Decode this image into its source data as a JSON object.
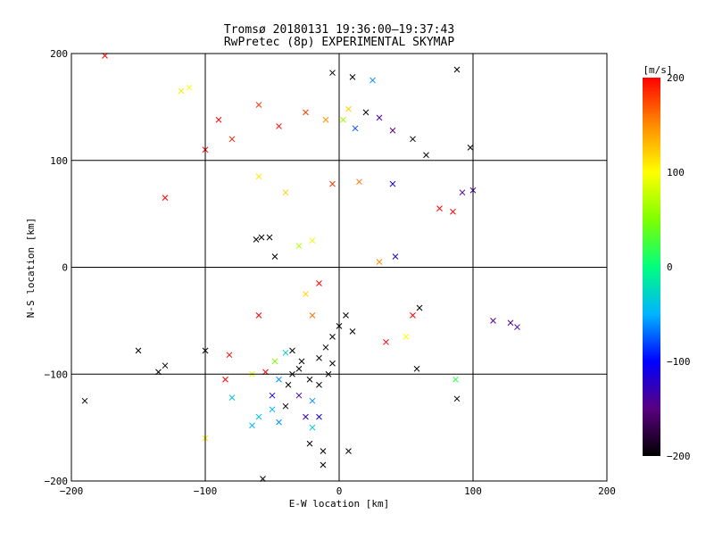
{
  "chart_data": {
    "type": "scatter",
    "title": "Tromsø 20180131 19:36:00–19:37:43",
    "subtitle": "RwPretec (8p) EXPERIMENTAL SKYMAP",
    "xlabel": "E-W location [km]",
    "ylabel": "N-S location [km]",
    "xlim": [
      -200,
      200
    ],
    "ylim": [
      -200,
      200
    ],
    "xticks": [
      -200,
      -100,
      0,
      100,
      200
    ],
    "yticks": [
      -200,
      -100,
      0,
      100,
      200
    ],
    "grid": true,
    "colorbar": {
      "label": "[m/s]",
      "range": [
        -200,
        200
      ],
      "ticks": [
        200,
        100,
        0,
        -100,
        -200
      ],
      "colormap": "rainbow-black",
      "stops": [
        "#000000",
        "#5a0080",
        "#0000ff",
        "#00b4ff",
        "#00ff7f",
        "#7fff00",
        "#ffff00",
        "#ff8c00",
        "#ff0000"
      ]
    },
    "series": [
      {
        "marker": "x",
        "points": [
          [
            -175,
            198,
            200
          ],
          [
            -118,
            165,
            110
          ],
          [
            -112,
            168,
            100
          ],
          [
            -90,
            138,
            200
          ],
          [
            -80,
            120,
            190
          ],
          [
            -60,
            152,
            180
          ],
          [
            -45,
            132,
            200
          ],
          [
            -25,
            145,
            180
          ],
          [
            -10,
            138,
            150
          ],
          [
            3,
            138,
            60
          ],
          [
            7,
            148,
            120
          ],
          [
            20,
            145,
            -200
          ],
          [
            25,
            175,
            -60
          ],
          [
            10,
            178,
            -200
          ],
          [
            -5,
            182,
            -200
          ],
          [
            88,
            185,
            -200
          ],
          [
            -100,
            110,
            200
          ],
          [
            -130,
            65,
            200
          ],
          [
            -60,
            85,
            110
          ],
          [
            -40,
            70,
            120
          ],
          [
            -5,
            78,
            180
          ],
          [
            15,
            80,
            160
          ],
          [
            40,
            78,
            -120
          ],
          [
            55,
            120,
            -200
          ],
          [
            65,
            105,
            -200
          ],
          [
            98,
            112,
            -200
          ],
          [
            92,
            70,
            -140
          ],
          [
            100,
            72,
            -140
          ],
          [
            85,
            52,
            200
          ],
          [
            75,
            55,
            200
          ],
          [
            12,
            130,
            -80
          ],
          [
            30,
            140,
            -140
          ],
          [
            40,
            128,
            -150
          ],
          [
            -58,
            28,
            -200
          ],
          [
            -52,
            28,
            -200
          ],
          [
            -62,
            26,
            -200
          ],
          [
            -48,
            10,
            -200
          ],
          [
            -30,
            20,
            70
          ],
          [
            -20,
            25,
            90
          ],
          [
            30,
            5,
            150
          ],
          [
            42,
            10,
            -120
          ],
          [
            -15,
            -15,
            200
          ],
          [
            -25,
            -25,
            120
          ],
          [
            -20,
            -45,
            160
          ],
          [
            55,
            -45,
            200
          ],
          [
            60,
            -38,
            -200
          ],
          [
            -60,
            -45,
            200
          ],
          [
            50,
            -65,
            100
          ],
          [
            35,
            -70,
            200
          ],
          [
            -150,
            -78,
            -200
          ],
          [
            -135,
            -98,
            -200
          ],
          [
            -130,
            -92,
            -200
          ],
          [
            -100,
            -78,
            -200
          ],
          [
            -82,
            -82,
            200
          ],
          [
            -85,
            -105,
            200
          ],
          [
            -80,
            -122,
            -40
          ],
          [
            -65,
            -100,
            90
          ],
          [
            -55,
            -98,
            200
          ],
          [
            -45,
            -105,
            -60
          ],
          [
            -50,
            -120,
            -110
          ],
          [
            -45,
            -145,
            -60
          ],
          [
            -50,
            -133,
            -50
          ],
          [
            -40,
            -130,
            -200
          ],
          [
            -30,
            -120,
            -140
          ],
          [
            -20,
            -125,
            -60
          ],
          [
            -25,
            -140,
            -130
          ],
          [
            -15,
            -140,
            -110
          ],
          [
            -20,
            -150,
            -30
          ],
          [
            -22,
            -165,
            -200
          ],
          [
            -60,
            -140,
            -40
          ],
          [
            -65,
            -148,
            -50
          ],
          [
            -48,
            -88,
            50
          ],
          [
            -40,
            -80,
            -40
          ],
          [
            58,
            -95,
            -200
          ],
          [
            88,
            -123,
            -200
          ],
          [
            87,
            -105,
            20
          ],
          [
            115,
            -50,
            -140
          ],
          [
            128,
            -52,
            -140
          ],
          [
            133,
            -56,
            -140
          ],
          [
            -190,
            -125,
            -200
          ],
          [
            -100,
            -160,
            110
          ],
          [
            -57,
            -198,
            -200
          ],
          [
            -12,
            -172,
            -200
          ],
          [
            -12,
            -185,
            -200
          ],
          [
            7,
            -172,
            -200
          ],
          [
            -5,
            -90,
            -200
          ],
          [
            -8,
            -100,
            -200
          ],
          [
            -35,
            -78,
            -200
          ],
          [
            -30,
            -95,
            -200
          ],
          [
            -15,
            -110,
            -200
          ],
          [
            -22,
            -105,
            -200
          ],
          [
            -10,
            -75,
            -200
          ],
          [
            0,
            -55,
            -200
          ],
          [
            10,
            -60,
            -200
          ],
          [
            -5,
            -65,
            -200
          ],
          [
            -15,
            -85,
            -200
          ],
          [
            5,
            -45,
            -200
          ],
          [
            -28,
            -88,
            -200
          ],
          [
            -35,
            -100,
            -200
          ],
          [
            -38,
            -110,
            -200
          ]
        ]
      }
    ]
  }
}
